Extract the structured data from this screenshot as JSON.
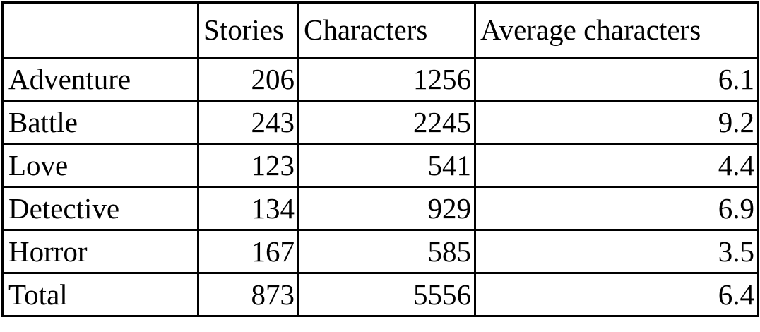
{
  "table": {
    "headers": [
      "",
      "Stories",
      "Characters",
      "Average characters"
    ],
    "rows": [
      {
        "genre": "Adventure",
        "stories": "206",
        "characters": "1256",
        "average": "6.1"
      },
      {
        "genre": "Battle",
        "stories": "243",
        "characters": "2245",
        "average": "9.2"
      },
      {
        "genre": "Love",
        "stories": "123",
        "characters": "541",
        "average": "4.4"
      },
      {
        "genre": "Detective",
        "stories": "134",
        "characters": "929",
        "average": "6.9"
      },
      {
        "genre": "Horror",
        "stories": "167",
        "characters": "585",
        "average": "3.5"
      },
      {
        "genre": "Total",
        "stories": "873",
        "characters": "5556",
        "average": "6.4"
      }
    ]
  }
}
